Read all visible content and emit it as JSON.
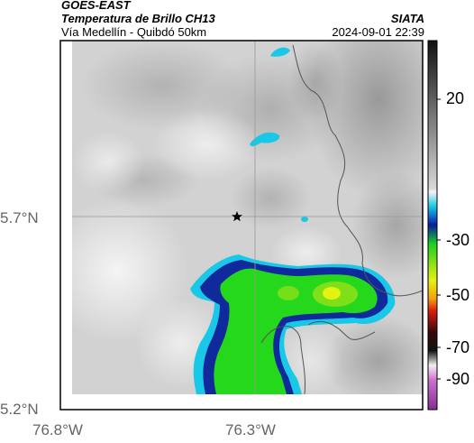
{
  "header": {
    "satellite": "GOES-EAST",
    "product": "Temperatura de Brillo CH13",
    "route": "Vía Medellín - Quibdó 50km",
    "org": "SIATA",
    "datetime": "2024-09-01 22:39"
  },
  "map": {
    "lat_ticks": [
      "5.7°N",
      "5.2°N"
    ],
    "lon_ticks": [
      "76.8°W",
      "76.3°W"
    ],
    "marker": "star-marker",
    "colors": {
      "cloud_light": "#ececec",
      "cloud_dark": "#8c8c8c",
      "cold_cyan": "#19c8e6",
      "deep_blue": "#102a9c",
      "core_green": "#26d81c",
      "core_yellow": "#e4f214",
      "border": "#555555"
    }
  },
  "colorbar": {
    "labels": [
      "20",
      "-30",
      "-50",
      "-70",
      "-90"
    ]
  }
}
